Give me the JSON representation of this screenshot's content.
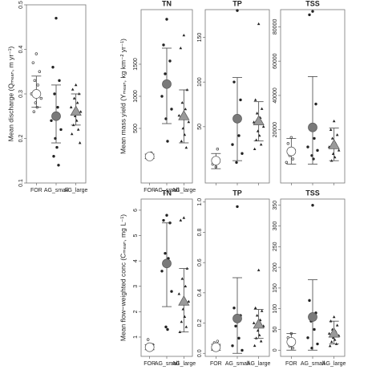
{
  "chart_data": [
    {
      "type": "dot",
      "ylabel": "Mean discharge (Qₘₑₐₙ, m yr⁻¹)",
      "categories": [
        "FOR",
        "AG_small",
        "AG_large"
      ],
      "ylim": [
        0.1,
        0.5
      ],
      "yticks": [
        0.1,
        0.2,
        0.3,
        0.4,
        0.5
      ],
      "markers": [
        "circle",
        "circle",
        "triangle"
      ],
      "colors": [
        "#ffffff",
        "#7a7a7a",
        "#9a9a9a"
      ],
      "means": [
        0.3,
        0.25,
        0.26
      ],
      "lower": [
        0.27,
        0.19,
        0.23
      ],
      "upper": [
        0.34,
        0.32,
        0.3
      ],
      "points": [
        [
          0.39,
          0.37,
          0.35,
          0.33,
          0.32,
          0.3,
          0.29,
          0.28,
          0.27,
          0.26
        ],
        [
          0.47,
          0.36,
          0.33,
          0.3,
          0.27,
          0.24,
          0.22,
          0.2,
          0.18,
          0.16,
          0.14
        ],
        [
          0.32,
          0.31,
          0.3,
          0.29,
          0.28,
          0.27,
          0.26,
          0.25,
          0.24,
          0.23,
          0.22,
          0.21,
          0.19
        ]
      ]
    },
    {
      "type": "dot",
      "title": "TN",
      "ylabel": "Mean mass yield (Yₘₑₐₙ, kg km⁻² yr⁻¹)",
      "categories": [
        "FOR",
        "AG_small",
        "AG_large"
      ],
      "ylim": [
        -350,
        2350
      ],
      "yticks": [
        500,
        1000,
        1500
      ],
      "markers": [
        "circle",
        "circle",
        "triangle"
      ],
      "colors": [
        "#ffffff",
        "#7a7a7a",
        "#9a9a9a"
      ],
      "means": [
        62,
        1190,
        690
      ],
      "lower": [
        30,
        575,
        275
      ],
      "upper": [
        100,
        1750,
        1100
      ],
      "points": [
        [
          20,
          40,
          60,
          80,
          120
        ],
        [
          2200,
          1800,
          1550,
          1350,
          1200,
          1000,
          800,
          650,
          300
        ],
        [
          1950,
          1750,
          1100,
          900,
          800,
          700,
          600,
          500,
          400,
          300,
          200
        ]
      ]
    },
    {
      "type": "dot",
      "title": "TP",
      "ylim": [
        -13,
        181
      ],
      "yticks": [
        50,
        100,
        150
      ],
      "markers": [
        "circle",
        "circle",
        "triangle"
      ],
      "colors": [
        "#ffffff",
        "#7a7a7a",
        "#9a9a9a"
      ],
      "means": [
        12,
        59,
        56
      ],
      "lower": [
        3,
        12,
        34
      ],
      "upper": [
        20,
        105,
        78
      ],
      "points": [
        [
          5,
          8,
          12,
          15,
          25
        ],
        [
          180,
          100,
          80,
          60,
          40,
          30,
          20,
          10
        ],
        [
          165,
          80,
          70,
          65,
          60,
          55,
          50,
          45,
          40,
          35,
          30,
          25
        ]
      ]
    },
    {
      "type": "dot",
      "title": "TSS",
      "ylim": [
        -11000,
        90000
      ],
      "yticks": [
        20000,
        40000,
        60000,
        80000
      ],
      "markers": [
        "circle",
        "circle",
        "triangle"
      ],
      "colors": [
        "#ffffff",
        "#7a7a7a",
        "#9a9a9a"
      ],
      "means": [
        7400,
        21400,
        11000
      ],
      "lower": [
        0,
        0,
        2000
      ],
      "upper": [
        15000,
        51000,
        21000
      ],
      "points": [
        [
          15500,
          12000,
          8000,
          5000,
          3000,
          1000
        ],
        [
          89000,
          87000,
          35000,
          20000,
          15000,
          10000,
          8000,
          5000,
          3000
        ],
        [
          25000,
          20000,
          17000,
          15000,
          12000,
          10000,
          8000,
          6000,
          4000,
          2000
        ]
      ]
    },
    {
      "type": "dot",
      "title": "TN",
      "ylabel": "Mean flow−weighted conc (Cₘₑₐₙ, mg L⁻¹)",
      "categories": [
        "FOR",
        "AG_small",
        "AG_large"
      ],
      "ylim": [
        0.24,
        6.44
      ],
      "yticks": [
        1,
        2,
        3,
        4,
        5,
        6
      ],
      "markers": [
        "circle",
        "circle",
        "triangle"
      ],
      "colors": [
        "#ffffff",
        "#7a7a7a",
        "#9a9a9a"
      ],
      "means": [
        0.6,
        3.9,
        2.4
      ],
      "lower": [
        0.5,
        2.2,
        1.2
      ],
      "upper": [
        0.7,
        5.5,
        3.7
      ],
      "points": [
        [
          0.5,
          0.6,
          0.7,
          0.9
        ],
        [
          5.8,
          5.6,
          5.5,
          4.3,
          4.1,
          3.6,
          2.8,
          1.4,
          1.3
        ],
        [
          5.7,
          5.6,
          3.7,
          3.3,
          3.0,
          2.7,
          2.4,
          2.1,
          1.8,
          1.6,
          1.4,
          1.2
        ]
      ]
    },
    {
      "type": "dot",
      "title": "TP",
      "categories": [
        "FOR",
        "AG_small",
        "AG_large"
      ],
      "ylim": [
        -0.02,
        1.02
      ],
      "yticks": [
        {
          "value": 0,
          "label": "0.0"
        },
        0.2,
        0.4,
        0.6,
        0.8,
        {
          "value": 1,
          "label": "1.0"
        }
      ],
      "markers": [
        "circle",
        "circle",
        "triangle"
      ],
      "colors": [
        "#ffffff",
        "#7a7a7a",
        "#9a9a9a"
      ],
      "means": [
        0.04,
        0.23,
        0.19
      ],
      "lower": [
        0.02,
        0.0,
        0.1
      ],
      "upper": [
        0.06,
        0.5,
        0.29
      ],
      "points": [
        [
          0.02,
          0.03,
          0.05,
          0.07,
          0.08
        ],
        [
          0.97,
          0.3,
          0.25,
          0.18,
          0.1,
          0.05,
          0.02
        ],
        [
          0.55,
          0.3,
          0.28,
          0.25,
          0.22,
          0.2,
          0.18,
          0.15,
          0.12,
          0.1,
          0.08,
          0.05
        ]
      ]
    },
    {
      "type": "dot",
      "title": "TSS",
      "categories": [
        "FOR",
        "AG_small",
        "AG_large"
      ],
      "ylim": [
        -15,
        365
      ],
      "yticks": [
        0,
        50,
        100,
        150,
        200,
        250,
        300,
        350
      ],
      "markers": [
        "circle",
        "circle",
        "triangle"
      ],
      "colors": [
        "#ffffff",
        "#7a7a7a",
        "#9a9a9a"
      ],
      "means": [
        20,
        80,
        40
      ],
      "lower": [
        0,
        0,
        15
      ],
      "upper": [
        40,
        170,
        70
      ],
      "points": [
        [
          40,
          30,
          20,
          10,
          5
        ],
        [
          350,
          120,
          90,
          70,
          50,
          30,
          15,
          5
        ],
        [
          80,
          70,
          60,
          50,
          45,
          40,
          35,
          30,
          25,
          20,
          15,
          10
        ]
      ]
    }
  ]
}
